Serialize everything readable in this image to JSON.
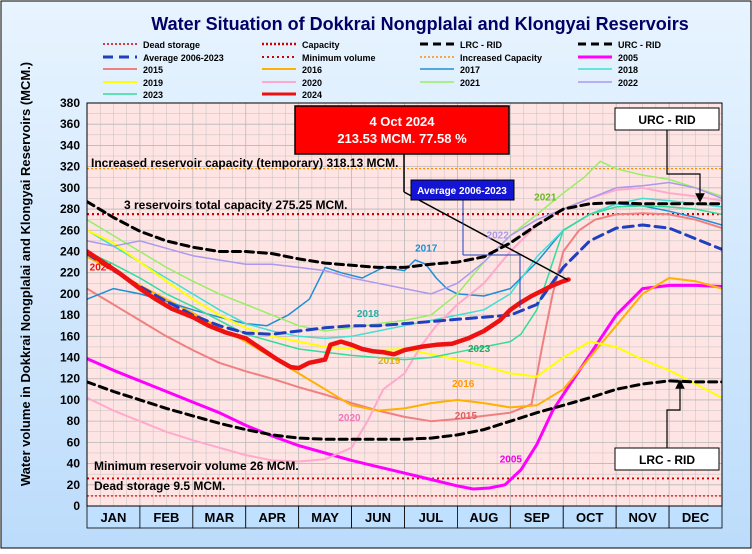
{
  "chart_data": {
    "type": "line",
    "title": "Water Situation of Dokkrai Nongplalai and Klongyai Reservoirs",
    "ylabel": "Water volume in Dokkrai Nongplalai and Klongyai Reservoirs (MCM.)",
    "xlabel": "",
    "ylim": [
      0,
      380
    ],
    "ytick_step": 20,
    "months": [
      "JAN",
      "FEB",
      "MAR",
      "APR",
      "MAY",
      "JUN",
      "JUL",
      "AUG",
      "SEP",
      "OCT",
      "NOV",
      "DEC"
    ],
    "colors": {
      "title": "#000066",
      "plot_bg": "#ffe0e0",
      "grid": "#aaaaaa",
      "outer_bg": "#cfe8ff",
      "axis_band": "#bfe0ff"
    },
    "legend": [
      {
        "label": "Dead storage",
        "color": "#cc0000",
        "dash": "2,2",
        "width": 1.5
      },
      {
        "label": "Capacity",
        "color": "#cc0000",
        "dash": "2,2",
        "width": 2.5
      },
      {
        "label": "LRC - RID",
        "color": "#000000",
        "dash": "8,5",
        "width": 3
      },
      {
        "label": "URC - RID",
        "color": "#000000",
        "dash": "8,5",
        "width": 3
      },
      {
        "label": "Average 2006-2023",
        "color": "#1f3fbf",
        "dash": "10,6",
        "width": 3
      },
      {
        "label": "Minimum volume",
        "color": "#cc0000",
        "dash": "2,3",
        "width": 2
      },
      {
        "label": "Increased Capacity",
        "color": "#ff8c00",
        "dash": "2,2",
        "width": 1.5
      },
      {
        "label": "2005",
        "color": "#ff00ff",
        "dash": "",
        "width": 3
      },
      {
        "label": "2015",
        "color": "#f08080",
        "dash": "",
        "width": 2
      },
      {
        "label": "2016",
        "color": "#ffb000",
        "dash": "",
        "width": 2
      },
      {
        "label": "2017",
        "color": "#1e8fd6",
        "dash": "",
        "width": 1.5
      },
      {
        "label": "2018",
        "color": "#40e0d0",
        "dash": "",
        "width": 1.5
      },
      {
        "label": "2019",
        "color": "#ffff00",
        "dash": "",
        "width": 2
      },
      {
        "label": "2020",
        "color": "#ffaacc",
        "dash": "",
        "width": 2
      },
      {
        "label": "2021",
        "color": "#99ee66",
        "dash": "",
        "width": 1.5
      },
      {
        "label": "2022",
        "color": "#aa99ee",
        "dash": "",
        "width": 1.5
      },
      {
        "label": "2023",
        "color": "#33dd99",
        "dash": "",
        "width": 1.5
      },
      {
        "label": "2024",
        "color": "#ee1111",
        "dash": "",
        "width": 4.5
      }
    ],
    "hlines": [
      {
        "name": "increased-capacity",
        "value": 318.13,
        "color": "#ff8c00",
        "dash": "2,2",
        "width": 1.2
      },
      {
        "name": "capacity",
        "value": 275.25,
        "color": "#cc0000",
        "dash": "2,3",
        "width": 2.2
      },
      {
        "name": "minimum-volume",
        "value": 26,
        "color": "#cc0000",
        "dash": "2,3",
        "width": 1.8
      },
      {
        "name": "dead-storage",
        "value": 9.5,
        "color": "#cc0000",
        "dash": "2,2",
        "width": 1.2
      }
    ],
    "series": [
      {
        "name": "2005",
        "color": "#ff00ff",
        "width": 3,
        "dash": "",
        "x": [
          0,
          0.5,
          1,
          1.5,
          2,
          2.5,
          3,
          3.5,
          4,
          4.5,
          5,
          5.5,
          6,
          6.5,
          7,
          7.3,
          7.6,
          7.9,
          8.2,
          8.5,
          8.8,
          9.2,
          9.6,
          10,
          10.5,
          11,
          11.5,
          12
        ],
        "y": [
          139,
          128,
          118,
          108,
          98,
          88,
          76,
          66,
          57,
          50,
          43,
          37,
          31,
          25,
          19,
          16,
          17,
          20,
          34,
          58,
          90,
          120,
          150,
          180,
          205,
          208,
          208,
          207
        ]
      },
      {
        "name": "2015",
        "color": "#f08080",
        "width": 2,
        "dash": "",
        "x": [
          0,
          0.5,
          1,
          1.5,
          2,
          2.5,
          3,
          3.5,
          4,
          4.5,
          5,
          5.5,
          6,
          6.5,
          7,
          7.5,
          8,
          8.4,
          8.6,
          8.8,
          9,
          9.3,
          9.6,
          10,
          10.5,
          11,
          11.5,
          12
        ],
        "y": [
          205,
          190,
          175,
          160,
          147,
          135,
          127,
          120,
          112,
          105,
          97,
          90,
          84,
          80,
          82,
          85,
          88,
          96,
          150,
          200,
          240,
          260,
          270,
          275,
          276,
          275,
          270,
          262
        ]
      },
      {
        "name": "2016",
        "color": "#ffb000",
        "width": 2,
        "dash": "",
        "x": [
          0,
          0.5,
          1,
          1.5,
          2,
          2.5,
          3,
          3.5,
          4,
          4.5,
          5,
          5.5,
          6,
          6.5,
          7,
          7.5,
          8,
          8.5,
          9,
          9.5,
          10,
          10.5,
          11,
          11.5,
          12
        ],
        "y": [
          235,
          222,
          208,
          195,
          182,
          168,
          155,
          140,
          125,
          110,
          95,
          90,
          92,
          97,
          100,
          97,
          93,
          95,
          110,
          140,
          170,
          200,
          215,
          212,
          205
        ]
      },
      {
        "name": "2017",
        "color": "#1e8fd6",
        "width": 1.5,
        "dash": "",
        "x": [
          0,
          0.5,
          1,
          1.5,
          2,
          2.5,
          3,
          3.4,
          3.8,
          4.2,
          4.5,
          4.8,
          5.2,
          5.6,
          6,
          6.2,
          6.4,
          6.6,
          6.8,
          7,
          7.5,
          8,
          8.5,
          9,
          9.5,
          10,
          10.5,
          11,
          11.5,
          12
        ],
        "y": [
          195,
          205,
          200,
          193,
          185,
          178,
          172,
          170,
          180,
          195,
          225,
          220,
          215,
          225,
          222,
          232,
          228,
          215,
          205,
          200,
          198,
          205,
          230,
          260,
          275,
          285,
          283,
          278,
          272,
          265
        ]
      },
      {
        "name": "2018",
        "color": "#40e0d0",
        "width": 1.5,
        "dash": "",
        "x": [
          0,
          0.5,
          1,
          1.5,
          2,
          2.5,
          3,
          3.5,
          4,
          4.5,
          5,
          5.5,
          6,
          6.5,
          7,
          7.5,
          8,
          8.5,
          9,
          9.5,
          10,
          10.5,
          11,
          11.5,
          12
        ],
        "y": [
          260,
          245,
          230,
          215,
          200,
          185,
          172,
          165,
          160,
          158,
          160,
          165,
          170,
          175,
          180,
          185,
          200,
          235,
          260,
          275,
          285,
          290,
          288,
          285,
          282
        ]
      },
      {
        "name": "2019",
        "color": "#ffff00",
        "width": 2,
        "dash": "",
        "x": [
          0,
          0.5,
          1,
          1.5,
          2,
          2.5,
          3,
          3.5,
          4,
          4.5,
          5,
          5.5,
          6,
          6.5,
          7,
          7.5,
          8,
          8.5,
          9,
          9.5,
          10,
          10.5,
          11,
          11.5,
          12
        ],
        "y": [
          260,
          248,
          230,
          212,
          195,
          180,
          168,
          160,
          155,
          150,
          148,
          147,
          148,
          143,
          138,
          132,
          125,
          122,
          140,
          155,
          150,
          138,
          128,
          115,
          102
        ]
      },
      {
        "name": "2020",
        "color": "#ffaacc",
        "width": 2,
        "dash": "",
        "x": [
          0,
          0.5,
          1,
          1.5,
          2,
          2.5,
          3,
          3.5,
          4,
          4.5,
          5,
          5.3,
          5.6,
          6,
          6.3,
          6.6,
          7,
          7.5,
          8,
          8.5,
          9,
          9.5,
          10,
          10.5,
          11,
          11.5,
          12
        ],
        "y": [
          102,
          90,
          80,
          70,
          62,
          55,
          48,
          43,
          42,
          44,
          55,
          80,
          110,
          125,
          150,
          170,
          190,
          210,
          240,
          265,
          280,
          290,
          298,
          300,
          295,
          292,
          288
        ]
      },
      {
        "name": "2021",
        "color": "#99ee66",
        "width": 1.5,
        "dash": "",
        "x": [
          0,
          0.5,
          1,
          1.5,
          2,
          2.5,
          3,
          3.5,
          4,
          4.5,
          5,
          5.5,
          6,
          6.5,
          7,
          7.5,
          8,
          8.5,
          9,
          9.4,
          9.7,
          10,
          10.5,
          11,
          11.5,
          12
        ],
        "y": [
          270,
          255,
          240,
          225,
          212,
          200,
          190,
          180,
          170,
          165,
          168,
          172,
          175,
          180,
          200,
          230,
          255,
          275,
          295,
          310,
          325,
          318,
          312,
          308,
          300,
          292
        ]
      },
      {
        "name": "2022",
        "color": "#aa99ee",
        "width": 1.5,
        "dash": "",
        "x": [
          0,
          0.5,
          1,
          1.5,
          2,
          2.5,
          3,
          3.5,
          4,
          4.5,
          5,
          5.5,
          6,
          6.5,
          7,
          7.5,
          8,
          8.5,
          9,
          9.5,
          10,
          10.5,
          11,
          11.5,
          12
        ],
        "y": [
          250,
          245,
          250,
          243,
          236,
          232,
          228,
          228,
          225,
          222,
          215,
          210,
          205,
          200,
          210,
          230,
          255,
          270,
          280,
          290,
          300,
          302,
          305,
          300,
          290
        ]
      },
      {
        "name": "2023",
        "color": "#33dd99",
        "width": 1.5,
        "dash": "",
        "x": [
          0,
          0.5,
          1,
          1.5,
          2,
          2.5,
          3,
          3.5,
          4,
          4.5,
          5,
          5.5,
          6,
          6.5,
          7,
          7.5,
          8,
          8.2,
          8.5,
          8.8,
          9,
          9.5,
          10,
          10.5,
          11,
          11.5,
          12
        ],
        "y": [
          240,
          228,
          215,
          200,
          188,
          175,
          162,
          155,
          148,
          145,
          142,
          140,
          138,
          140,
          145,
          150,
          155,
          162,
          185,
          230,
          260,
          275,
          282,
          283,
          282,
          280,
          275
        ]
      },
      {
        "name": "URC - RID",
        "color": "#000000",
        "width": 3,
        "dash": "8,5",
        "x": [
          0,
          0.5,
          1,
          1.5,
          2,
          2.5,
          3,
          3.5,
          4,
          4.5,
          5,
          5.5,
          6,
          6.5,
          7,
          7.5,
          8,
          8.5,
          9,
          9.5,
          10,
          10.5,
          11,
          11.5,
          12
        ],
        "y": [
          287,
          272,
          259,
          250,
          244,
          240,
          240,
          238,
          233,
          229,
          227,
          225,
          225,
          228,
          230,
          235,
          248,
          265,
          280,
          285,
          286,
          285,
          285,
          285,
          285
        ]
      },
      {
        "name": "LRC - RID",
        "color": "#000000",
        "width": 3,
        "dash": "8,5",
        "x": [
          0,
          0.5,
          1,
          1.5,
          2,
          2.5,
          3,
          3.5,
          4,
          4.5,
          5,
          5.5,
          6,
          6.5,
          7,
          7.5,
          8,
          8.5,
          9,
          9.5,
          10,
          10.5,
          11,
          11.5,
          12
        ],
        "y": [
          117,
          108,
          100,
          92,
          85,
          78,
          72,
          67,
          64,
          63,
          63,
          63,
          63,
          64,
          67,
          72,
          80,
          88,
          95,
          102,
          110,
          115,
          118,
          117,
          117
        ]
      },
      {
        "name": "Average 2006-2023",
        "color": "#1f3fbf",
        "width": 3,
        "dash": "10,6",
        "x": [
          0,
          0.5,
          1,
          1.5,
          2,
          2.5,
          3,
          3.5,
          4,
          4.5,
          5,
          5.5,
          6,
          6.5,
          7,
          7.5,
          8,
          8.5,
          9,
          9.5,
          10,
          10.5,
          11,
          11.5,
          12
        ],
        "y": [
          238,
          222,
          207,
          193,
          180,
          170,
          163,
          162,
          165,
          168,
          170,
          170,
          172,
          174,
          176,
          178,
          180,
          190,
          225,
          250,
          262,
          265,
          262,
          252,
          242
        ]
      },
      {
        "name": "2024",
        "color": "#ee1111",
        "width": 4.5,
        "dash": "",
        "x": [
          0,
          0.3,
          0.6,
          1,
          1.3,
          1.6,
          2,
          2.3,
          2.6,
          3,
          3.3,
          3.6,
          3.85,
          4,
          4.2,
          4.5,
          4.6,
          4.8,
          5,
          5.2,
          5.4,
          5.6,
          5.8,
          6,
          6.3,
          6.6,
          6.9,
          7.2,
          7.5,
          7.8,
          8,
          8.2,
          8.4,
          8.6,
          8.8,
          9.0,
          9.1
        ],
        "y": [
          240,
          230,
          220,
          205,
          195,
          186,
          178,
          170,
          164,
          158,
          148,
          138,
          131,
          130,
          135,
          138,
          152,
          155,
          152,
          148,
          146,
          145,
          143,
          147,
          150,
          152,
          153,
          158,
          165,
          175,
          185,
          192,
          198,
          203,
          208,
          212,
          213.53
        ]
      }
    ],
    "annotations": {
      "increased_capacity_text": "Increased reservoir capacity (temporary)  318.13 MCM.",
      "capacity_text": "3 reservoirs total capacity 275.25 MCM.",
      "minimum_text": "Minimum reservoir volume 26 MCM.",
      "dead_storage_text": "Dead storage 9.5 MCM.",
      "current_date": "4 Oct 2024",
      "current_value": "213.53 MCM. 77.58 %",
      "current_point": {
        "x": 9.1,
        "y": 213.53
      },
      "avg_box_label": "Average 2006-2023",
      "urc_box_label": "URC - RID",
      "lrc_box_label": "LRC - RID",
      "series_labels": [
        {
          "text": "2024",
          "x": 0.05,
          "y": 222,
          "color": "#ee1111"
        },
        {
          "text": "2017",
          "x": 6.2,
          "y": 240,
          "color": "#1e8fd6"
        },
        {
          "text": "2022",
          "x": 7.55,
          "y": 252,
          "color": "#aa99ee"
        },
        {
          "text": "2021",
          "x": 8.45,
          "y": 288,
          "color": "#66bb22"
        },
        {
          "text": "2018",
          "x": 5.1,
          "y": 178,
          "color": "#20b0a8"
        },
        {
          "text": "2019",
          "x": 5.5,
          "y": 134,
          "color": "#e0b000"
        },
        {
          "text": "2023",
          "x": 7.2,
          "y": 145,
          "color": "#22aa66"
        },
        {
          "text": "2016",
          "x": 6.9,
          "y": 112,
          "color": "#ff9900"
        },
        {
          "text": "2015",
          "x": 6.95,
          "y": 82,
          "color": "#e06060"
        },
        {
          "text": "2020",
          "x": 4.75,
          "y": 80,
          "color": "#ee77bb"
        },
        {
          "text": "2005",
          "x": 7.8,
          "y": 41,
          "color": "#ee00ee"
        }
      ]
    }
  }
}
